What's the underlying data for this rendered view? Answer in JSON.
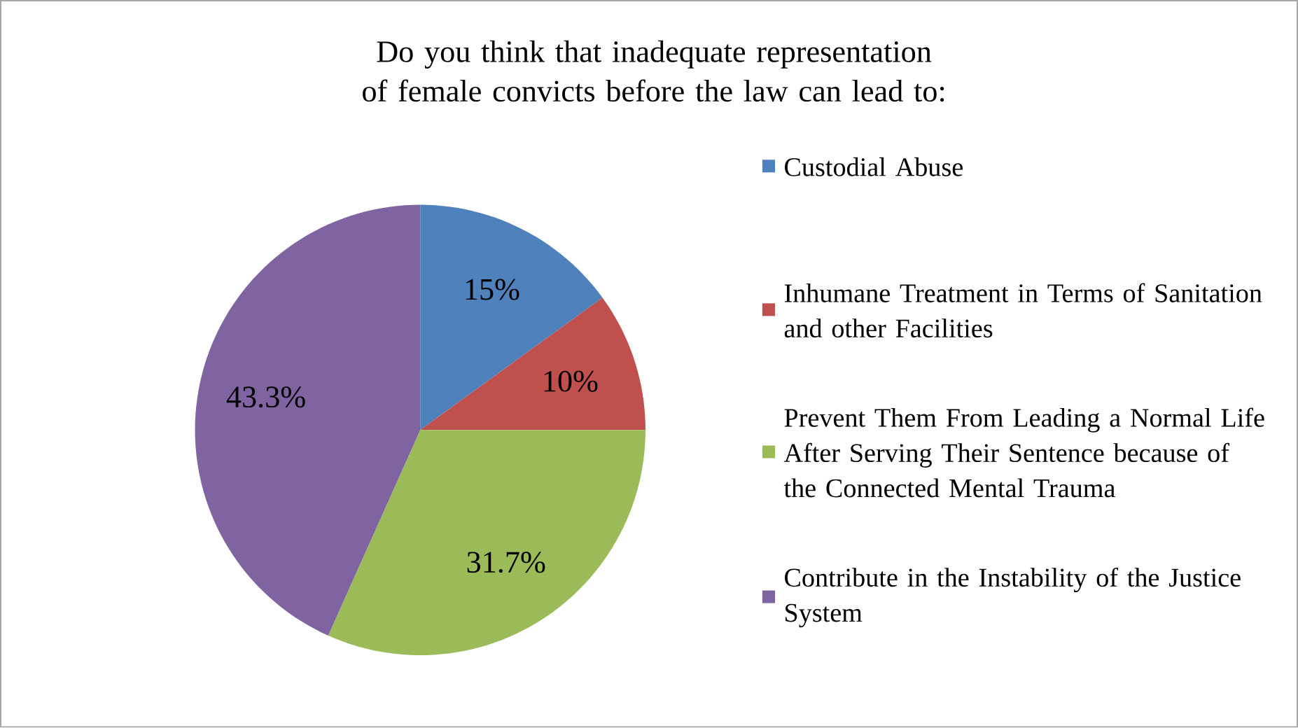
{
  "chart_data": {
    "type": "pie",
    "title": "Do you think that inadequate representation of female convicts before the law can lead to:",
    "categories": [
      "Custodial Abuse",
      "Inhumane Treatment in Terms of Sanitation and other Facilities",
      "Prevent Them From Leading a Normal Life After Serving Their Sentence because of the Connected Mental Trauma",
      "Contribute in the Instability of the Justice System"
    ],
    "values": [
      15,
      10,
      31.7,
      43.3
    ],
    "colors": [
      "#4f81bd",
      "#c0504d",
      "#9bbb59",
      "#8064a2"
    ],
    "value_labels": [
      "15%",
      "10%",
      "31.7%",
      "43.3%"
    ],
    "legend": "right"
  }
}
